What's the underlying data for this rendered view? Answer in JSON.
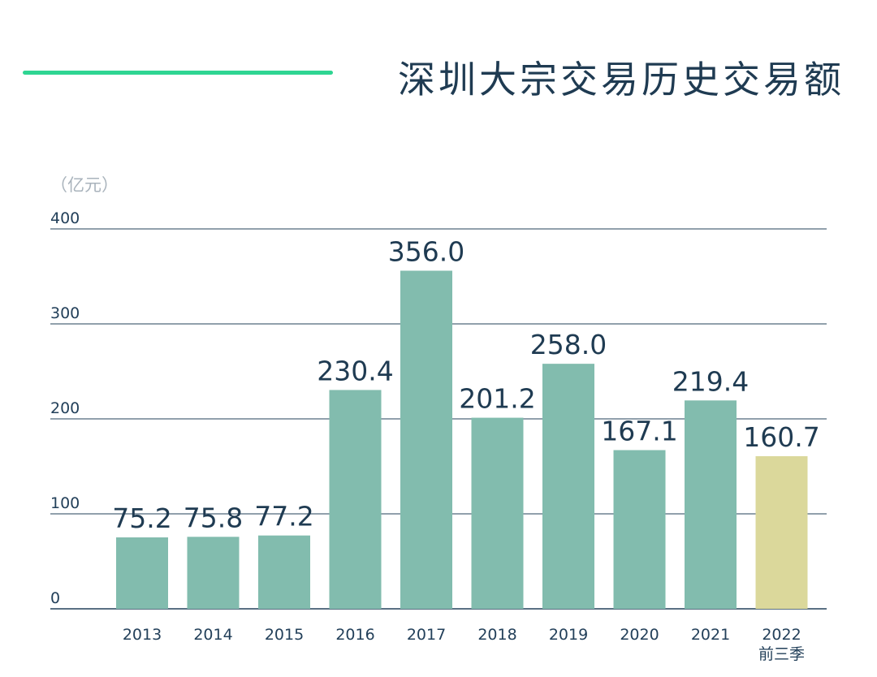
{
  "header": {
    "title": "深圳大宗交易历史交易额"
  },
  "chart_data": {
    "type": "bar",
    "unit_label": "（亿元）",
    "categories": [
      "2013",
      "2014",
      "2015",
      "2016",
      "2017",
      "2018",
      "2019",
      "2020",
      "2021",
      "2022"
    ],
    "category_sublabels": [
      "",
      "",
      "",
      "",
      "",
      "",
      "",
      "",
      "",
      "前三季"
    ],
    "values": [
      75.2,
      75.8,
      77.2,
      230.4,
      356.0,
      201.2,
      258.0,
      167.1,
      219.4,
      160.7
    ],
    "value_labels": [
      "75.2",
      "75.8",
      "77.2",
      "230.4",
      "356.0",
      "201.2",
      "258.0",
      "167.1",
      "219.4",
      "160.7"
    ],
    "ylim": [
      0,
      400
    ],
    "yticks": [
      0,
      100,
      200,
      300,
      400
    ],
    "grid": true,
    "colors": {
      "bar": "#82bcae",
      "highlight_bar": "#dbd89b",
      "grid": "#23405a",
      "tick_text": "#23405a",
      "value_text": "#1f3b52",
      "unit_text": "#a9b3bc",
      "accent": "#2fd592"
    },
    "highlight_index": 9
  }
}
